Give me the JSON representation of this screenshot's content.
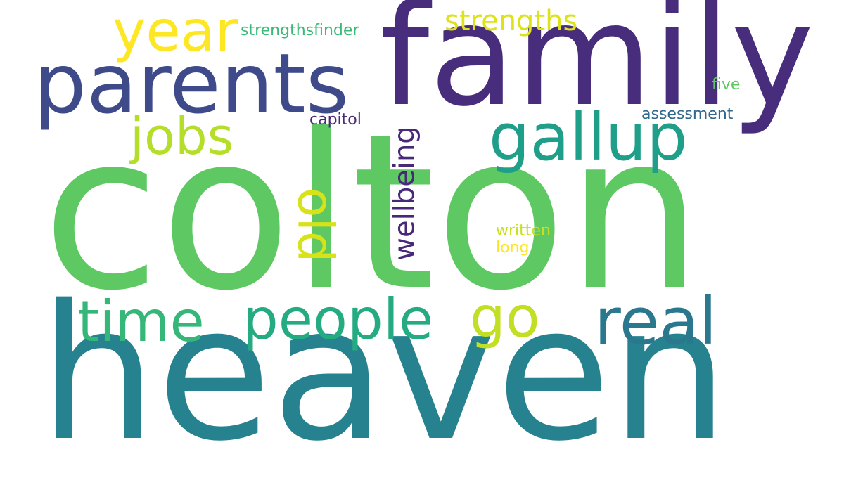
{
  "words": {
    "heaven": "heaven",
    "colton": "colton",
    "family": "family",
    "parents": "parents",
    "year": "year",
    "gallup": "gallup",
    "jobs": "jobs",
    "time": "time",
    "people": "people",
    "go": "go",
    "real": "real",
    "strengths": "strengths",
    "strengthsfinder": "strengthsfinder",
    "five": "five",
    "assessment": "assessment",
    "capitol": "capitol",
    "written": "written",
    "long": "long",
    "old": "old",
    "wellbeing": "wellbeing"
  },
  "colors": {
    "background": "#ffffff",
    "palette": [
      "#472d7b",
      "#3e4a89",
      "#31688e",
      "#26828e",
      "#1f9e89",
      "#35b779",
      "#5ec962",
      "#b5de2b",
      "#fde725"
    ]
  }
}
